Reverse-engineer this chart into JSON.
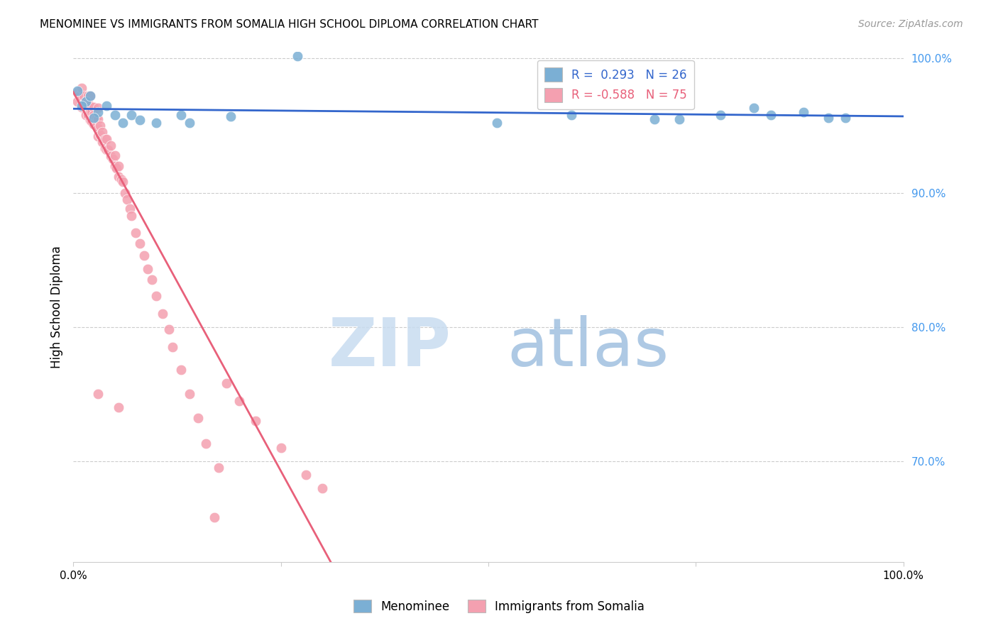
{
  "title": "MENOMINEE VS IMMIGRANTS FROM SOMALIA HIGH SCHOOL DIPLOMA CORRELATION CHART",
  "source": "Source: ZipAtlas.com",
  "ylabel": "High School Diploma",
  "xlim": [
    0.0,
    1.0
  ],
  "ylim": [
    0.625,
    1.005
  ],
  "blue_R": 0.293,
  "blue_N": 26,
  "pink_R": -0.588,
  "pink_N": 75,
  "blue_color": "#7BAFD4",
  "pink_color": "#F4A0B0",
  "blue_line_color": "#3366CC",
  "pink_line_color": "#E8607A",
  "legend_label_blue": "Menominee",
  "legend_label_pink": "Immigrants from Somalia",
  "y_tick_positions": [
    0.7,
    0.8,
    0.9,
    1.0
  ],
  "y_tick_labels": [
    "70.0%",
    "80.0%",
    "90.0%",
    "100.0%"
  ],
  "blue_scatter_x": [
    0.27,
    0.005,
    0.015,
    0.02,
    0.03,
    0.04,
    0.05,
    0.07,
    0.08,
    0.1,
    0.13,
    0.14,
    0.19,
    0.51,
    0.6,
    0.7,
    0.73,
    0.78,
    0.82,
    0.84,
    0.88,
    0.91,
    0.93,
    0.01,
    0.025,
    0.06
  ],
  "blue_scatter_y": [
    1.002,
    0.976,
    0.968,
    0.972,
    0.96,
    0.965,
    0.958,
    0.958,
    0.954,
    0.952,
    0.958,
    0.952,
    0.957,
    0.952,
    0.958,
    0.955,
    0.955,
    0.958,
    0.963,
    0.958,
    0.96,
    0.956,
    0.956,
    0.965,
    0.956,
    0.952
  ],
  "pink_scatter_x": [
    0.005,
    0.005,
    0.008,
    0.01,
    0.01,
    0.01,
    0.012,
    0.013,
    0.015,
    0.015,
    0.015,
    0.018,
    0.018,
    0.018,
    0.02,
    0.02,
    0.02,
    0.02,
    0.022,
    0.022,
    0.025,
    0.025,
    0.025,
    0.028,
    0.028,
    0.03,
    0.03,
    0.03,
    0.03,
    0.032,
    0.032,
    0.035,
    0.035,
    0.038,
    0.038,
    0.04,
    0.04,
    0.042,
    0.045,
    0.045,
    0.048,
    0.05,
    0.05,
    0.052,
    0.055,
    0.055,
    0.058,
    0.06,
    0.062,
    0.065,
    0.068,
    0.07,
    0.075,
    0.08,
    0.085,
    0.09,
    0.095,
    0.1,
    0.108,
    0.115,
    0.12,
    0.13,
    0.14,
    0.15,
    0.16,
    0.175,
    0.185,
    0.2,
    0.22,
    0.25,
    0.28,
    0.3,
    0.03,
    0.055,
    0.17
  ],
  "pink_scatter_y": [
    0.975,
    0.968,
    0.972,
    0.978,
    0.97,
    0.964,
    0.966,
    0.972,
    0.968,
    0.963,
    0.958,
    0.972,
    0.965,
    0.958,
    0.972,
    0.965,
    0.96,
    0.954,
    0.96,
    0.953,
    0.964,
    0.958,
    0.951,
    0.956,
    0.95,
    0.963,
    0.955,
    0.948,
    0.942,
    0.95,
    0.943,
    0.945,
    0.938,
    0.94,
    0.933,
    0.94,
    0.932,
    0.932,
    0.935,
    0.927,
    0.925,
    0.928,
    0.92,
    0.918,
    0.92,
    0.912,
    0.91,
    0.908,
    0.9,
    0.895,
    0.888,
    0.883,
    0.87,
    0.862,
    0.853,
    0.843,
    0.835,
    0.823,
    0.81,
    0.798,
    0.785,
    0.768,
    0.75,
    0.732,
    0.713,
    0.695,
    0.758,
    0.745,
    0.73,
    0.71,
    0.69,
    0.68,
    0.75,
    0.74,
    0.658
  ],
  "pink_line_x": [
    0.0,
    0.31
  ],
  "pink_line_y": [
    0.975,
    0.625
  ]
}
